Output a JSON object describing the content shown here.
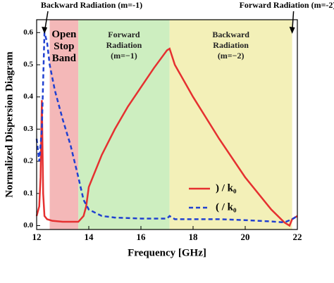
{
  "chart_data": {
    "type": "line",
    "xlabel": "Frequency [GHz]",
    "ylabel": "Normalized Dispersion Diagram",
    "xlim": [
      12,
      22
    ],
    "xticks": [
      12,
      14,
      16,
      18,
      20,
      22
    ],
    "ylim": [
      -0.012,
      0.64
    ],
    "yticks": [
      {
        "value": 0,
        "label": "0.0"
      },
      0.1,
      0.2,
      0.3,
      0.4,
      0.5,
      0.6
    ],
    "regions": [
      {
        "label": "Open Stop Band",
        "from": 12.5,
        "to": 13.6,
        "color": "#f4b8b8"
      },
      {
        "label": "Forward Radiation (m=−1)",
        "from": 13.6,
        "to": 17.1,
        "color": "#cdeec0"
      },
      {
        "label": "Backward Radiation (m=−2)",
        "from": 17.1,
        "to": 21.8,
        "color": "#f3f0b8"
      }
    ],
    "annotations": [
      {
        "text": "Backward Radiation (m=-1)",
        "x": 12.3
      },
      {
        "text": "Forward Radiation (m=-2)",
        "x": 21.8
      }
    ],
    "series": [
      {
        "name": ") / k₀",
        "color": "#e53030",
        "dash": false,
        "x": [
          12.0,
          12.1,
          12.15,
          12.2,
          12.25,
          12.3,
          12.4,
          12.6,
          13.0,
          13.6,
          13.8,
          13.9,
          14.0,
          14.5,
          15.0,
          15.5,
          16.0,
          16.5,
          17.0,
          17.1,
          17.3,
          18.0,
          19.0,
          20.0,
          21.0,
          21.5,
          21.7,
          21.8,
          22.0
        ],
        "values": [
          0.03,
          0.06,
          0.15,
          0.39,
          0.1,
          0.03,
          0.02,
          0.015,
          0.012,
          0.012,
          0.03,
          0.06,
          0.12,
          0.22,
          0.3,
          0.37,
          0.43,
          0.49,
          0.545,
          0.55,
          0.5,
          0.4,
          0.27,
          0.15,
          0.05,
          0.01,
          0.0,
          0.02,
          0.03
        ]
      },
      {
        "name": "( / k₀",
        "color": "#2040d0",
        "dash": true,
        "x": [
          12.0,
          12.1,
          12.2,
          12.3,
          12.4,
          12.5,
          12.7,
          13.0,
          13.3,
          13.6,
          13.8,
          14.0,
          14.5,
          15.0,
          16.0,
          17.0,
          17.1,
          17.3,
          18.0,
          19.0,
          20.0,
          21.0,
          21.5,
          21.8,
          22.0
        ],
        "values": [
          0.27,
          0.2,
          0.3,
          0.6,
          0.57,
          0.5,
          0.42,
          0.33,
          0.25,
          0.15,
          0.08,
          0.05,
          0.03,
          0.025,
          0.022,
          0.022,
          0.03,
          0.02,
          0.02,
          0.02,
          0.017,
          0.013,
          0.01,
          0.02,
          0.03
        ]
      }
    ]
  }
}
